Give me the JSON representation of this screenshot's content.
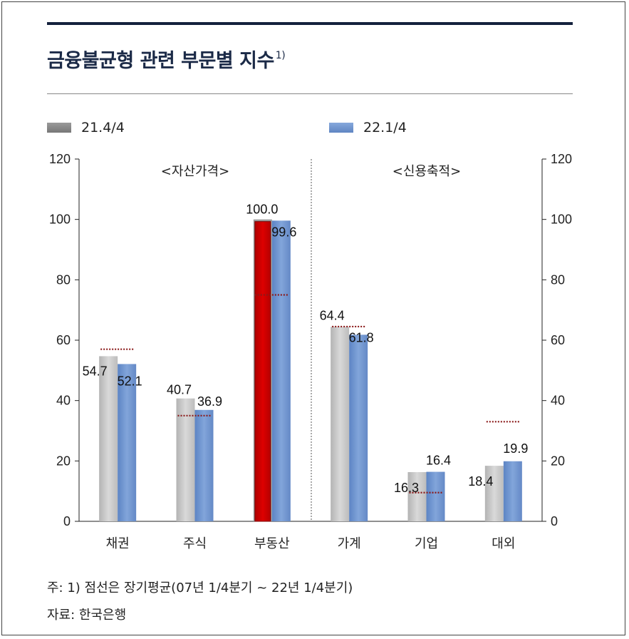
{
  "title": "금융불균형 관련 부문별 지수",
  "title_note": "1)",
  "footnote": "주: 1) 점선은 장기평균(07년 1/4분기 ~ 22년 1/4분기)",
  "source": "자료: 한국은행",
  "colors": {
    "series1": "#c4c4c4",
    "series2": "#6f95cf",
    "highlight": "#cc0000",
    "long_run_avg": "#8b1a1a"
  },
  "chart_data": {
    "type": "bar",
    "categories": [
      "채권",
      "주식",
      "부동산",
      "가계",
      "기업",
      "대외"
    ],
    "groups": [
      {
        "label": "<자산가격>",
        "categories": [
          "채권",
          "주식",
          "부동산"
        ]
      },
      {
        "label": "<신용축적>",
        "categories": [
          "가계",
          "기업",
          "대외"
        ]
      }
    ],
    "series": [
      {
        "name": "21.4/4",
        "values": [
          54.7,
          40.7,
          100.0,
          64.4,
          16.3,
          18.4
        ],
        "labels": [
          "54.7",
          "40.7",
          "100.0",
          "64.4",
          "16.3",
          "18.4"
        ]
      },
      {
        "name": "22.1/4",
        "values": [
          52.1,
          36.9,
          99.6,
          61.8,
          16.4,
          19.9
        ],
        "labels": [
          "52.1",
          "36.9",
          "99.6",
          "61.8",
          "16.4",
          "19.9"
        ]
      }
    ],
    "long_run_average": [
      57,
      35,
      75,
      64.5,
      9.5,
      33
    ],
    "highlighted_bar": {
      "series": 0,
      "category": 2
    },
    "ylim": [
      0,
      120
    ],
    "yticks": [
      "0",
      "20",
      "40",
      "60",
      "80",
      "100",
      "120"
    ],
    "ytick_values": [
      0,
      20,
      40,
      60,
      80,
      100,
      120
    ],
    "dual_y_axis": true,
    "grid": false,
    "legend_position": "top"
  }
}
